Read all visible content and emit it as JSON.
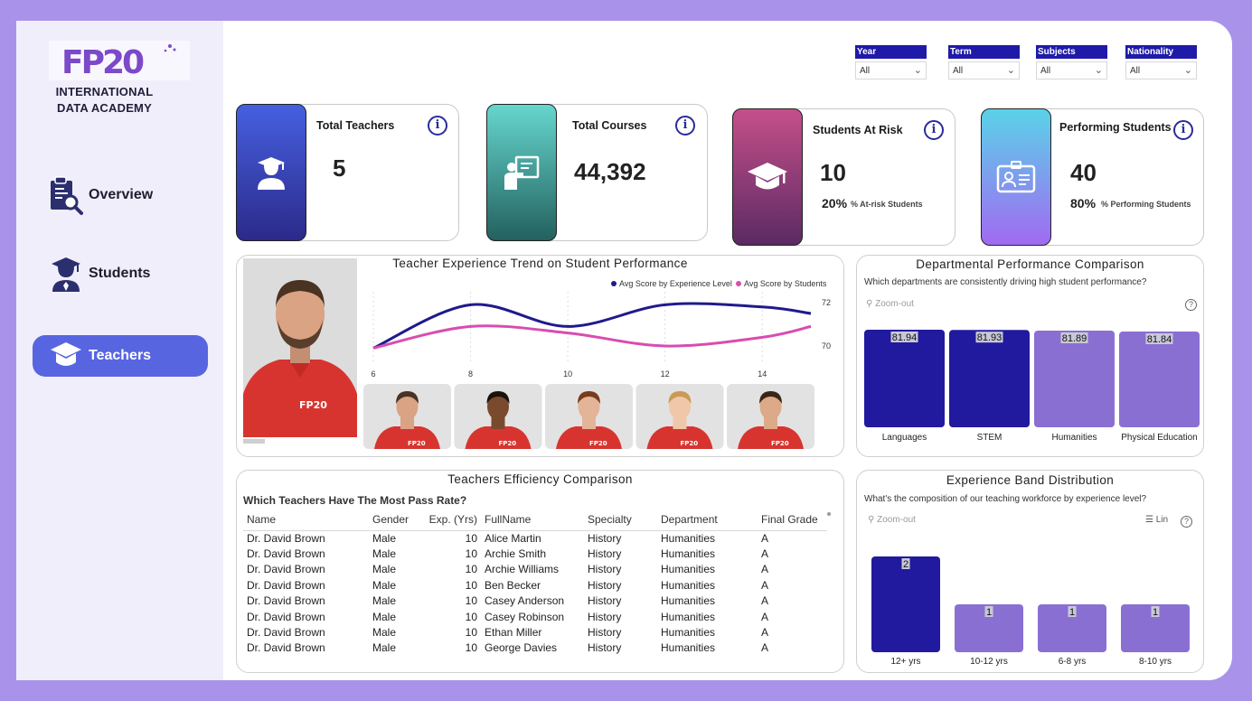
{
  "brand": {
    "logo_text": "FP20",
    "line1": "INTERNATIONAL",
    "line2": "DATA ACADEMY"
  },
  "nav": [
    {
      "label": "Overview",
      "icon": "report-search-icon"
    },
    {
      "label": "Students",
      "icon": "student-icon"
    },
    {
      "label": "Teachers",
      "icon": "graduation-cap-icon",
      "active": true
    }
  ],
  "filters": [
    {
      "label": "Year",
      "value": "All"
    },
    {
      "label": "Term",
      "value": "All"
    },
    {
      "label": "Subjects",
      "value": "All"
    },
    {
      "label": "Nationality",
      "value": "All"
    }
  ],
  "kpis": [
    {
      "title": "Total Teachers",
      "value": "5",
      "color_top": "#4660e0",
      "color_bottom": "#2b2a8a"
    },
    {
      "title": "Total Courses",
      "value": "44,392",
      "color_top": "#66d6ce",
      "color_bottom": "#23615e"
    },
    {
      "title": "Students At Risk",
      "value": "10",
      "pct": "20%",
      "pct_label": "% At-risk Students",
      "color_top": "#c54f8a",
      "color_bottom": "#5b2a63"
    },
    {
      "title": "Performing Students",
      "value": "40",
      "pct": "80%",
      "pct_label": "% Performing Students",
      "color_top": "#5ad2e8",
      "color_bottom": "#a16af2"
    }
  ],
  "trend": {
    "title": "Teacher Experience Trend on Student Performance",
    "legend": [
      "Avg Score by Experience Level",
      "Avg Score by Students"
    ],
    "colors": [
      "#1f1a8c",
      "#d94cb0"
    ],
    "chart_data": {
      "type": "line",
      "x": [
        6,
        8,
        10,
        12,
        14,
        15
      ],
      "series": [
        {
          "name": "Avg Score by Experience Level",
          "values": [
            69.9,
            71.9,
            70.9,
            71.9,
            71.8,
            71.5
          ]
        },
        {
          "name": "Avg Score by Students",
          "values": [
            69.9,
            70.9,
            70.6,
            70.0,
            70.4,
            70.9
          ]
        }
      ],
      "xticks": [
        6,
        8,
        10,
        12,
        14
      ],
      "yticks": [
        72,
        70
      ],
      "ylim": [
        69.5,
        72.5
      ]
    }
  },
  "dept": {
    "title": "Departmental Performance Comparison",
    "subtitle": "Which departments are consistently driving high student performance?",
    "zoom": "Zoom-out",
    "chart_data": {
      "type": "bar",
      "categories": [
        "Languages",
        "STEM",
        "Humanities",
        "Physical Education"
      ],
      "values": [
        81.94,
        81.93,
        81.89,
        81.84
      ],
      "labels": [
        "81.94",
        "81.93",
        "81.89",
        "81.84"
      ],
      "colors": [
        "#211a9e",
        "#211a9e",
        "#8a6fd2",
        "#8a6fd2"
      ]
    }
  },
  "efficiency": {
    "title": "Teachers Efficiency Comparison",
    "subtitle": "Which Teachers Have The Most Pass Rate?",
    "columns": [
      "Name",
      "Gender",
      "Exp. (Yrs)",
      "FullName",
      "Specialty",
      "Department",
      "Final Grade"
    ],
    "rows": [
      [
        "Dr. David Brown",
        "Male",
        "10",
        "Alice Martin",
        "History",
        "Humanities",
        "A"
      ],
      [
        "Dr. David Brown",
        "Male",
        "10",
        "Archie Smith",
        "History",
        "Humanities",
        "A"
      ],
      [
        "Dr. David Brown",
        "Male",
        "10",
        "Archie Williams",
        "History",
        "Humanities",
        "A"
      ],
      [
        "Dr. David Brown",
        "Male",
        "10",
        "Ben Becker",
        "History",
        "Humanities",
        "A"
      ],
      [
        "Dr. David Brown",
        "Male",
        "10",
        "Casey Anderson",
        "History",
        "Humanities",
        "A"
      ],
      [
        "Dr. David Brown",
        "Male",
        "10",
        "Casey Robinson",
        "History",
        "Humanities",
        "A"
      ],
      [
        "Dr. David Brown",
        "Male",
        "10",
        "Ethan Miller",
        "History",
        "Humanities",
        "A"
      ],
      [
        "Dr. David Brown",
        "Male",
        "10",
        "George Davies",
        "History",
        "Humanities",
        "A"
      ]
    ]
  },
  "band": {
    "title": "Experience Band Distribution",
    "subtitle": "What's the composition of our teaching workforce by experience level?",
    "zoom": "Zoom-out",
    "menu": "Lin",
    "chart_data": {
      "type": "bar",
      "categories": [
        "12+ yrs",
        "10-12 yrs",
        "6-8 yrs",
        "8-10 yrs"
      ],
      "values": [
        2,
        1,
        1,
        1
      ],
      "labels": [
        "2",
        "1",
        "1",
        "1"
      ],
      "colors": [
        "#211a9e",
        "#8a6fd2",
        "#8a6fd2",
        "#8a6fd2"
      ]
    }
  }
}
